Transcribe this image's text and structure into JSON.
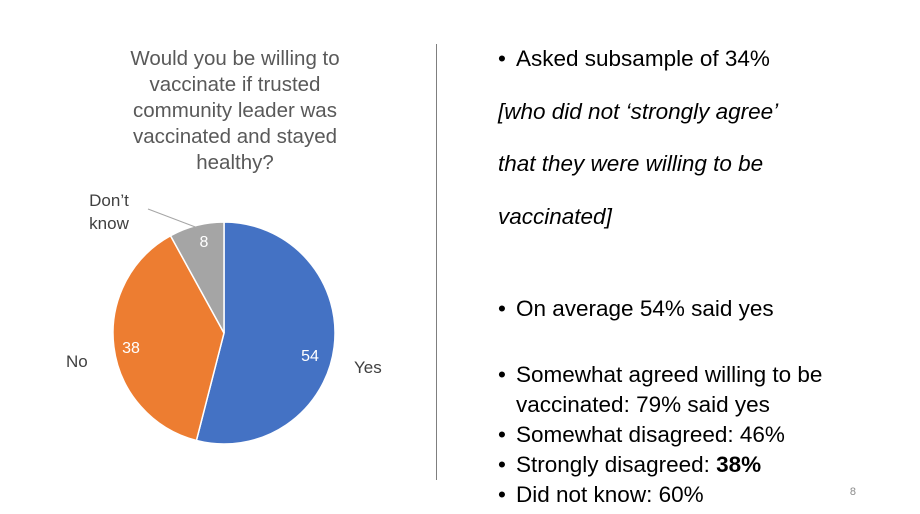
{
  "chart_data": {
    "type": "pie",
    "title": "Would you be willing to vaccinate if trusted community leader was vaccinated and stayed healthy?",
    "categories": [
      "Yes",
      "No",
      "Don’t know"
    ],
    "values": [
      54,
      38,
      8
    ],
    "colors": [
      "#4472c4",
      "#ed7d31",
      "#a5a5a5"
    ],
    "category_labels": {
      "yes": "Yes",
      "no": "No",
      "dont_know_line1": "Don’t",
      "dont_know_line2": "know"
    }
  },
  "bullets": {
    "b1": "Asked subsample of 34%",
    "b1_note_1": "[who did not ‘strongly agree’",
    "b1_note_2": "that they were willing to be",
    "b1_note_3": "vaccinated]",
    "b2": "On average 54% said yes",
    "b3_line1": "Somewhat agreed willing to be",
    "b3_line2": "vaccinated: 79% said yes",
    "b4": "Somewhat disagreed: 46%",
    "b5_prefix": "Strongly disagreed: ",
    "b5_bold": "38%",
    "b6": "Did not know: 60%"
  },
  "page_number": "8"
}
